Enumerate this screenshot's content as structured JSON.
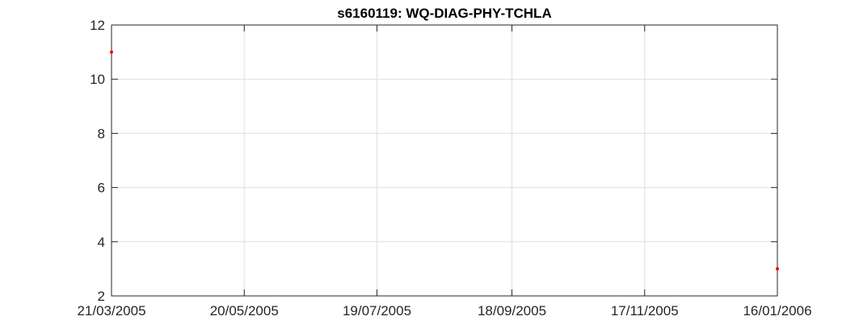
{
  "chart_data": {
    "type": "scatter",
    "title": "s6160119: WQ-DIAG-PHY-TCHLA",
    "xlabel": "",
    "ylabel": "",
    "x_is_date": true,
    "xlim": [
      "2005-03-21",
      "2006-01-16"
    ],
    "ylim": [
      2,
      12
    ],
    "x_ticks": [
      {
        "value": "2005-03-21",
        "label": "21/03/2005"
      },
      {
        "value": "2005-05-20",
        "label": "20/05/2005"
      },
      {
        "value": "2005-07-19",
        "label": "19/07/2005"
      },
      {
        "value": "2005-09-18",
        "label": "18/09/2005"
      },
      {
        "value": "2005-11-17",
        "label": "17/11/2005"
      },
      {
        "value": "2006-01-16",
        "label": "16/01/2006"
      }
    ],
    "y_ticks": [
      {
        "value": 2,
        "label": "2"
      },
      {
        "value": 4,
        "label": "4"
      },
      {
        "value": 6,
        "label": "6"
      },
      {
        "value": 8,
        "label": "8"
      },
      {
        "value": 10,
        "label": "10"
      },
      {
        "value": 12,
        "label": "12"
      }
    ],
    "grid": true,
    "series": [
      {
        "color": "#ff0000",
        "points": [
          {
            "x": "2005-03-21",
            "y": 11
          },
          {
            "x": "2006-01-16",
            "y": 3
          }
        ]
      }
    ]
  }
}
